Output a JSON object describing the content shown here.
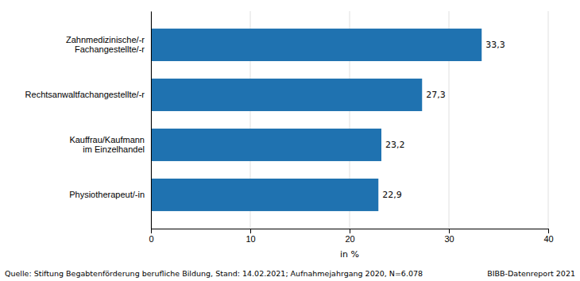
{
  "chart_data": {
    "type": "bar",
    "orientation": "horizontal",
    "categories": [
      "Physiotherapeut/-in",
      "Kauffrau/Kaufmann\nim Einzelhandel",
      "Rechtsanwaltfachangestellte/-r",
      "Zahnmedizinische/-r\nFachangestellte/-r"
    ],
    "values": [
      22.9,
      23.2,
      27.3,
      33.3
    ],
    "value_labels": [
      "22,9",
      "23,2",
      "27,3",
      "33,3"
    ],
    "data_labels": true,
    "color": "#1F72B0",
    "xlim": [
      0,
      40
    ],
    "xticks": [
      0,
      10,
      20,
      30,
      40
    ],
    "xlabel": "in %",
    "grid": true,
    "annotations": [
      "Quelle: Stiftung Begabtenförderung berufliche Bildung, Stand: 14.02.2021; Aufnahmejahrgang 2020, N=6.078",
      "BIBB-Datenreport 2021"
    ]
  }
}
